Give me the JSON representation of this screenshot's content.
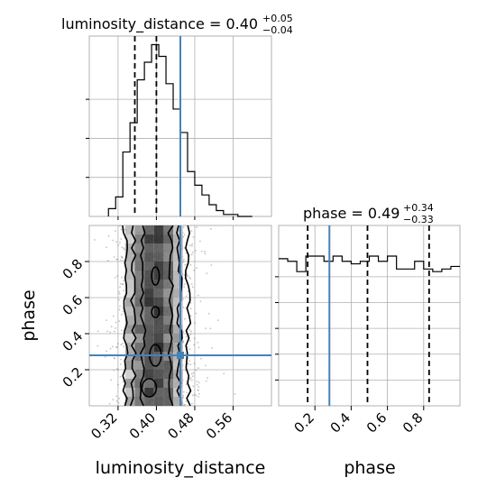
{
  "chart_data": {
    "type": "corner",
    "parameters": [
      "luminosity_distance",
      "phase"
    ],
    "axis_labels": {
      "x_bottom_left": "luminosity_distance",
      "x_bottom_right": "phase",
      "y_left": "phase"
    },
    "titles": {
      "luminosity_distance": {
        "name": "luminosity_distance",
        "median": "0.40",
        "plus": "+0.05",
        "minus": "−0.04"
      },
      "phase": {
        "name": "phase",
        "median": "0.49",
        "plus": "+0.34",
        "minus": "−0.33"
      }
    },
    "ranges": {
      "luminosity_distance": [
        0.26,
        0.64
      ],
      "phase": [
        0.0,
        1.0
      ]
    },
    "ticks": {
      "luminosity_distance": {
        "values": [
          0.32,
          0.4,
          0.48,
          0.56
        ],
        "labels": [
          "0.32",
          "0.40",
          "0.48",
          "0.56"
        ]
      },
      "phase": {
        "values": [
          0.2,
          0.4,
          0.6,
          0.8
        ],
        "labels": [
          "0.2",
          "0.4",
          "0.6",
          "0.8"
        ]
      }
    },
    "truths": {
      "luminosity_distance": 0.45,
      "phase": 0.28
    },
    "truth_color": "#4682b4",
    "quantiles": {
      "luminosity_distance": [
        0.355,
        0.4,
        0.45
      ],
      "phase": [
        0.16,
        0.49,
        0.83
      ]
    },
    "hist_luminosity_distance": {
      "bin_edges": [
        0.3,
        0.315,
        0.33,
        0.345,
        0.36,
        0.375,
        0.39,
        0.405,
        0.42,
        0.435,
        0.45,
        0.465,
        0.48,
        0.495,
        0.51,
        0.525,
        0.54,
        0.555,
        0.57,
        0.585,
        0.6
      ],
      "counts": [
        4,
        10,
        33,
        48,
        70,
        79,
        88,
        82,
        68,
        55,
        43,
        23,
        16,
        11,
        6,
        3,
        1,
        1,
        0,
        0
      ]
    },
    "hist_phase": {
      "bin_edges": [
        0.0,
        0.05,
        0.1,
        0.15,
        0.2,
        0.25,
        0.3,
        0.35,
        0.4,
        0.45,
        0.5,
        0.55,
        0.6,
        0.65,
        0.7,
        0.75,
        0.8,
        0.85,
        0.9,
        0.95,
        1.0
      ],
      "counts": [
        57,
        56,
        52,
        58,
        58,
        56,
        58,
        56,
        55,
        56,
        58,
        56,
        58,
        53,
        53,
        56,
        53,
        52,
        53,
        54
      ]
    }
  }
}
